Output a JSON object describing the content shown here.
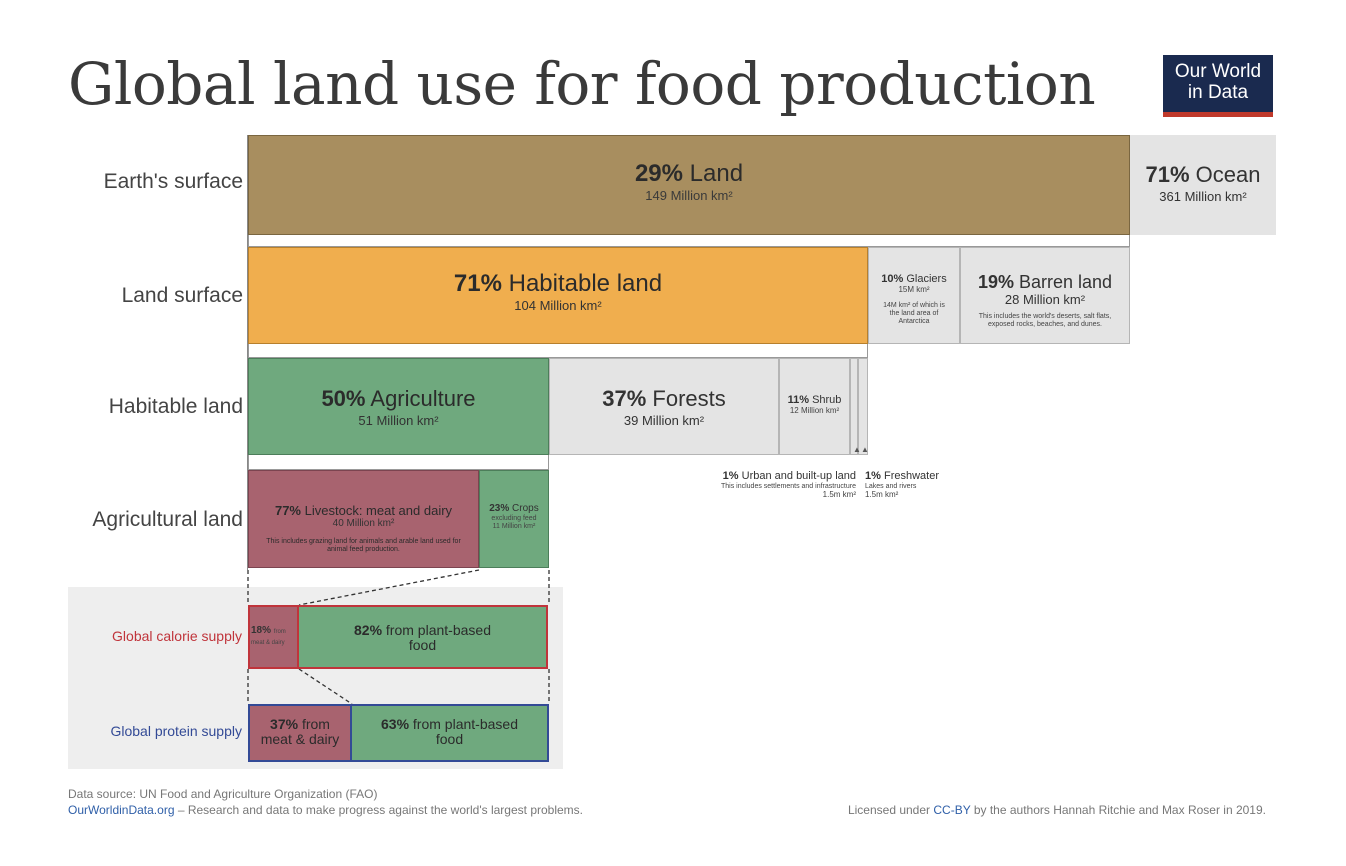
{
  "title": "Global land use for food production",
  "logo": {
    "line1": "Our World",
    "line2": "in Data"
  },
  "rows": {
    "earth": "Earth's surface",
    "land": "Land surface",
    "habitable": "Habitable land",
    "agricultural": "Agricultural land",
    "calorie": "Global calorie supply",
    "protein": "Global protein supply"
  },
  "colors": {
    "land": "#a88e5f",
    "habitable": "#f0ae4e",
    "agriculture": "#6fa97e",
    "livestock": "#a8636f",
    "grey": "#e4e4e4",
    "calorie_border": "#c0343b",
    "protein_border": "#334a96"
  },
  "chart_data": {
    "type": "stacked-bar",
    "rows": [
      {
        "name": "Earth's surface",
        "segments": [
          {
            "pct": "29%",
            "label": "Land",
            "value": "149 Million km²"
          },
          {
            "pct": "71%",
            "label": "Ocean",
            "value": "361 Million km²"
          }
        ]
      },
      {
        "name": "Land surface",
        "segments": [
          {
            "pct": "71%",
            "label": "Habitable land",
            "value": "104 Million km²"
          },
          {
            "pct": "10%",
            "label": "Glaciers",
            "value": "15M km²",
            "note": "14M km² of which is the land area of Antarctica"
          },
          {
            "pct": "19%",
            "label": "Barren land",
            "value": "28 Million km²",
            "note": "This includes the world's deserts, salt flats, exposed rocks, beaches, and dunes."
          }
        ]
      },
      {
        "name": "Habitable land",
        "segments": [
          {
            "pct": "50%",
            "label": "Agriculture",
            "value": "51 Million km²"
          },
          {
            "pct": "37%",
            "label": "Forests",
            "value": "39 Million km²"
          },
          {
            "pct": "11%",
            "label": "Shrub",
            "value": "12 Million km²"
          },
          {
            "pct": "1%",
            "label": "Urban and built-up land",
            "value": "1.5m km²",
            "note": "This includes settlements and infrastructure"
          },
          {
            "pct": "1%",
            "label": "Freshwater",
            "value": "1.5m km²",
            "note": "Lakes and rivers"
          }
        ]
      },
      {
        "name": "Agricultural land",
        "segments": [
          {
            "pct": "77%",
            "label": "Livestock: meat and dairy",
            "value": "40 Million km²",
            "note": "This includes grazing land for animals and arable land used for animal feed production."
          },
          {
            "pct": "23%",
            "label": "Crops",
            "value": "11 Million km²",
            "note": "excluding feed"
          }
        ]
      },
      {
        "name": "Global calorie supply",
        "segments": [
          {
            "pct": "18%",
            "label": "from meat & dairy"
          },
          {
            "pct": "82%",
            "label": "from plant-based food"
          }
        ]
      },
      {
        "name": "Global protein supply",
        "segments": [
          {
            "pct": "37%",
            "label": "from meat & dairy"
          },
          {
            "pct": "63%",
            "label": "from plant-based food"
          }
        ]
      }
    ]
  },
  "footer": {
    "source": "Data source: UN Food and Agriculture Organization (FAO)",
    "site": "OurWorldinData.org",
    "tagline": " – Research and data to make progress against the world's largest problems.",
    "license_pre": "Licensed under ",
    "license_link": "CC-BY",
    "license_post": " by the authors Hannah Ritchie and Max Roser in 2019."
  }
}
